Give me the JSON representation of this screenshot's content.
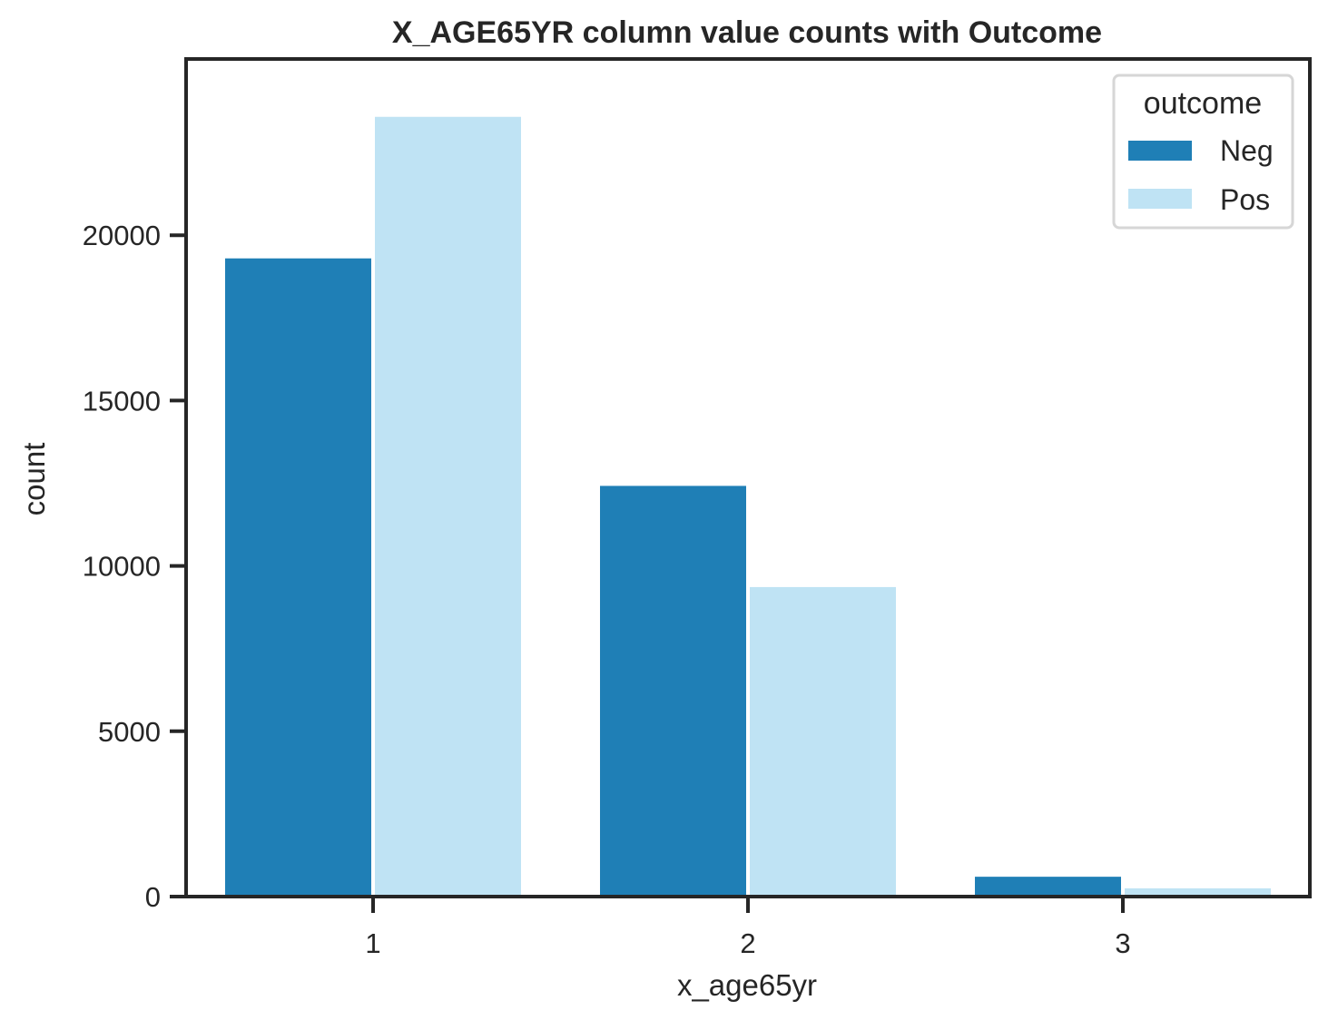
{
  "chart_data": {
    "type": "bar",
    "title": "X_AGE65YR column value counts with Outcome",
    "xlabel": "x_age65yr",
    "ylabel": "count",
    "categories": [
      "1",
      "2",
      "3"
    ],
    "series": [
      {
        "name": "Neg",
        "color": "#1f7fb6",
        "values": [
          19300,
          12420,
          600
        ]
      },
      {
        "name": "Pos",
        "color": "#bfe3f4",
        "values": [
          23580,
          9360,
          250
        ]
      }
    ],
    "yticks": [
      0,
      5000,
      10000,
      15000,
      20000
    ],
    "ylim": [
      0,
      25330
    ],
    "legend": {
      "title": "outcome",
      "placement": "top-right"
    },
    "grid": false
  }
}
